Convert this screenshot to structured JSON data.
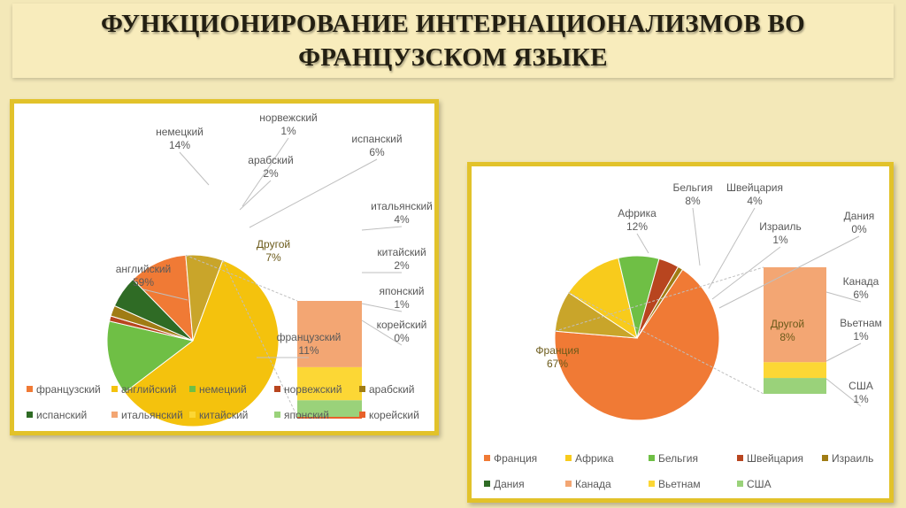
{
  "slide": {
    "title_line1": "ФУНКЦИОНИРОВАНИЕ ИНТЕРНАЦИОНАЛИЗМОВ ВО",
    "title_line2": "ФРАНЦУЗСКОМ ЯЗЫКЕ"
  },
  "chart_data": [
    {
      "type": "pie",
      "subtype": "bar-of-pie",
      "slices": [
        {
          "name": "французский",
          "value": 11,
          "label": "11%",
          "color": "#f07a35"
        },
        {
          "name": "английский",
          "value": 59,
          "label": "59%",
          "color": "#f4c20d"
        },
        {
          "name": "немецкий",
          "value": 14,
          "label": "14%",
          "color": "#6fbf45"
        },
        {
          "name": "норвежский",
          "value": 1,
          "label": "1%",
          "color": "#b8451f"
        },
        {
          "name": "арабский",
          "value": 2,
          "label": "2%",
          "color": "#a07c14"
        },
        {
          "name": "испанский",
          "value": 6,
          "label": "6%",
          "color": "#2f6b25"
        },
        {
          "name": "итальянский",
          "value": 4,
          "label": "4%",
          "color": "#f3a673"
        },
        {
          "name": "китайский",
          "value": 2,
          "label": "2%",
          "color": "#fcd735"
        },
        {
          "name": "японский",
          "value": 1,
          "label": "1%",
          "color": "#9ad27a"
        },
        {
          "name": "корейский",
          "value": 0,
          "label": "0%",
          "color": "#e8612a"
        }
      ],
      "other": {
        "name": "Другой",
        "label": "7%"
      },
      "legend": [
        "французский",
        "английский",
        "немецкий",
        "норвежский",
        "арабский",
        "испанский",
        "итальянский",
        "китайский",
        "японский",
        "корейский"
      ],
      "legend_position": "bottom"
    },
    {
      "type": "pie",
      "subtype": "bar-of-pie",
      "slices": [
        {
          "name": "Франция",
          "value": 67,
          "label": "67%",
          "color": "#f07a35"
        },
        {
          "name": "Африка",
          "value": 12,
          "label": "12%",
          "color": "#f8cb1c"
        },
        {
          "name": "Бельгия",
          "value": 8,
          "label": "8%",
          "color": "#6fbf45"
        },
        {
          "name": "Швейцария",
          "value": 4,
          "label": "4%",
          "color": "#b8451f"
        },
        {
          "name": "Израиль",
          "value": 1,
          "label": "1%",
          "color": "#a07c14"
        },
        {
          "name": "Дания",
          "value": 0,
          "label": "0%",
          "color": "#2f6b25"
        },
        {
          "name": "Канада",
          "value": 6,
          "label": "6%",
          "color": "#f3a673"
        },
        {
          "name": "Вьетнам",
          "value": 1,
          "label": "1%",
          "color": "#fcd735"
        },
        {
          "name": "США",
          "value": 1,
          "label": "1%",
          "color": "#9ad27a"
        }
      ],
      "other": {
        "name": "Другой",
        "label": "8%"
      },
      "legend": [
        "Франция",
        "Африка",
        "Бельгия",
        "Швейцария",
        "Израиль",
        "Дания",
        "Канада",
        "Вьетнам",
        "США"
      ],
      "legend_position": "bottom"
    }
  ]
}
